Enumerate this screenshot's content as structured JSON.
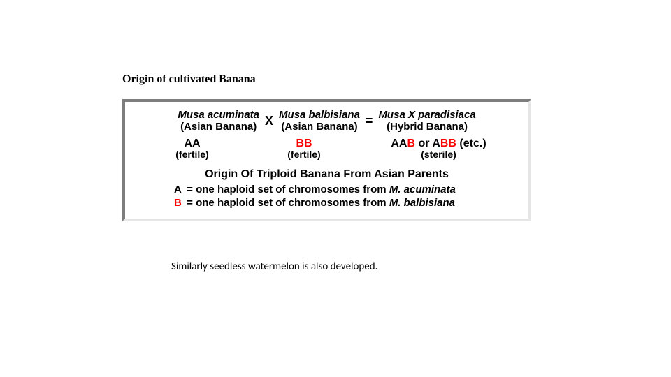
{
  "title": "Origin of cultivated Banana",
  "panel": {
    "border_dark": "#7d7d7d",
    "border_light": "#e5e5e5",
    "background": "#ffffff"
  },
  "cross": {
    "parentA": {
      "name": "Musa acuminata",
      "sub": "(Asian Banana)"
    },
    "x": "X",
    "parentB": {
      "name": "Musa balbisiana",
      "sub": "(Asian Banana)"
    },
    "eq": "=",
    "hybrid": {
      "name": "Musa X paradisiaca",
      "sub": "(Hybrid Banana)"
    }
  },
  "genotypes": {
    "A": {
      "code_black": "AA",
      "status": "(fertile)"
    },
    "B": {
      "code_red": "BB",
      "status": "(fertile)"
    },
    "AB": {
      "p1_black": "AA",
      "p1_red": "B",
      "or": " or ",
      "p2_black": "A",
      "p2_red": "BB",
      "etc": " (etc.)",
      "status": "(sterile)"
    }
  },
  "subtitle": "Origin Of Triploid Banana From Asian Parents",
  "legend": {
    "A": {
      "label": "A",
      "eq": " = ",
      "text_prefix": "one haploid set of chromosomes from ",
      "species": "M. acuminata"
    },
    "B": {
      "label": "B",
      "eq": " = ",
      "text_prefix": "one haploid set of chromosomes from ",
      "species": "M. balbisiana"
    }
  },
  "footer": "Similarly seedless watermelon is also developed.",
  "colors": {
    "red": "#ff0000",
    "black": "#000000"
  }
}
